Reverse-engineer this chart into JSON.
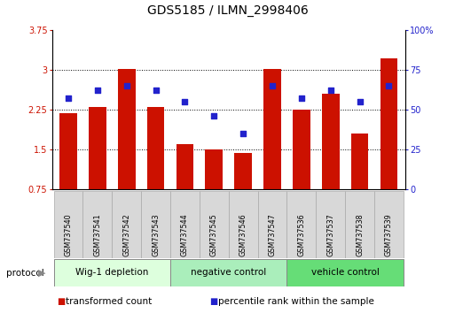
{
  "title": "GDS5185 / ILMN_2998406",
  "samples": [
    "GSM737540",
    "GSM737541",
    "GSM737542",
    "GSM737543",
    "GSM737544",
    "GSM737545",
    "GSM737546",
    "GSM737547",
    "GSM737536",
    "GSM737537",
    "GSM737538",
    "GSM737539"
  ],
  "bar_values": [
    2.18,
    2.3,
    3.01,
    2.29,
    1.6,
    1.5,
    1.44,
    3.02,
    2.25,
    2.55,
    1.8,
    3.22
  ],
  "dot_values": [
    57,
    62,
    65,
    62,
    55,
    46,
    35,
    65,
    57,
    62,
    55,
    65
  ],
  "ylim_left": [
    0.75,
    3.75
  ],
  "ylim_right": [
    0,
    100
  ],
  "yticks_left": [
    0.75,
    1.5,
    2.25,
    3.0,
    3.75
  ],
  "yticks_right": [
    0,
    25,
    50,
    75,
    100
  ],
  "ytick_labels_left": [
    "0.75",
    "1.5",
    "2.25",
    "3",
    "3.75"
  ],
  "ytick_labels_right": [
    "0",
    "25",
    "50",
    "75",
    "100%"
  ],
  "hlines": [
    1.5,
    2.25,
    3.0
  ],
  "bar_color": "#cc1100",
  "dot_color": "#2222cc",
  "groups": [
    {
      "label": "Wig-1 depletion",
      "start": 0,
      "end": 3,
      "color": "#ddffdd"
    },
    {
      "label": "negative control",
      "start": 4,
      "end": 7,
      "color": "#aaeebb"
    },
    {
      "label": "vehicle control",
      "start": 8,
      "end": 11,
      "color": "#66dd77"
    }
  ],
  "legend_items": [
    {
      "color": "#cc1100",
      "label": "transformed count"
    },
    {
      "color": "#2222cc",
      "label": "percentile rank within the sample"
    }
  ],
  "protocol_label": "protocol",
  "bar_width": 0.6,
  "title_fontsize": 10,
  "tick_fontsize": 7,
  "label_fontsize": 5.8,
  "group_fontsize": 7.5,
  "legend_fontsize": 7.5
}
